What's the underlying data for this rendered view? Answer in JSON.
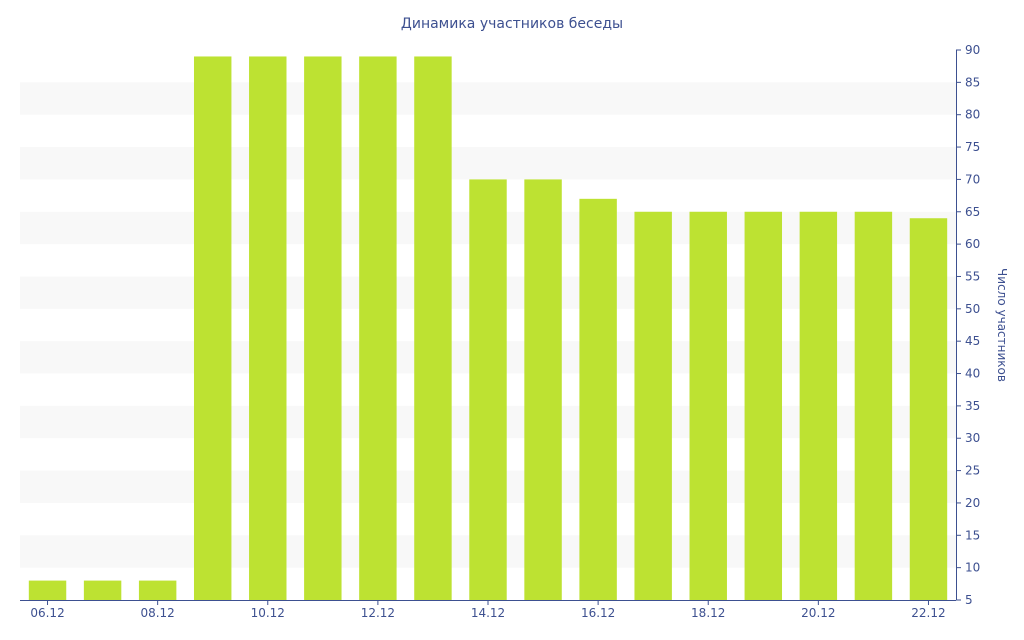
{
  "chart_data": {
    "type": "bar",
    "title": "Динамика участников беседы",
    "ylabel": "Число участников",
    "xlabel": "",
    "ylim": [
      5,
      90
    ],
    "y_ticks": [
      5,
      10,
      15,
      20,
      25,
      30,
      35,
      40,
      45,
      50,
      55,
      60,
      65,
      70,
      75,
      80,
      85,
      90
    ],
    "y_axis_side": "right",
    "grid": "alternating horizontal bands",
    "categories": [
      "06.12",
      "07.12",
      "08.12",
      "09.12",
      "10.12",
      "11.12",
      "12.12",
      "13.12",
      "14.12",
      "15.12",
      "16.12",
      "17.12",
      "18.12",
      "19.12",
      "20.12",
      "21.12",
      "22.12"
    ],
    "x_tick_labels": [
      "06.12",
      "08.12",
      "10.12",
      "12.12",
      "14.12",
      "16.12",
      "18.12",
      "20.12",
      "22.12"
    ],
    "values": [
      8,
      8,
      8,
      89,
      89,
      89,
      89,
      89,
      70,
      70,
      67,
      65,
      65,
      65,
      65,
      65,
      64
    ],
    "colors": {
      "bar": "#bde232",
      "band": "#f8f8f8",
      "text": "#3d5090",
      "axis": "#3d5090"
    }
  }
}
